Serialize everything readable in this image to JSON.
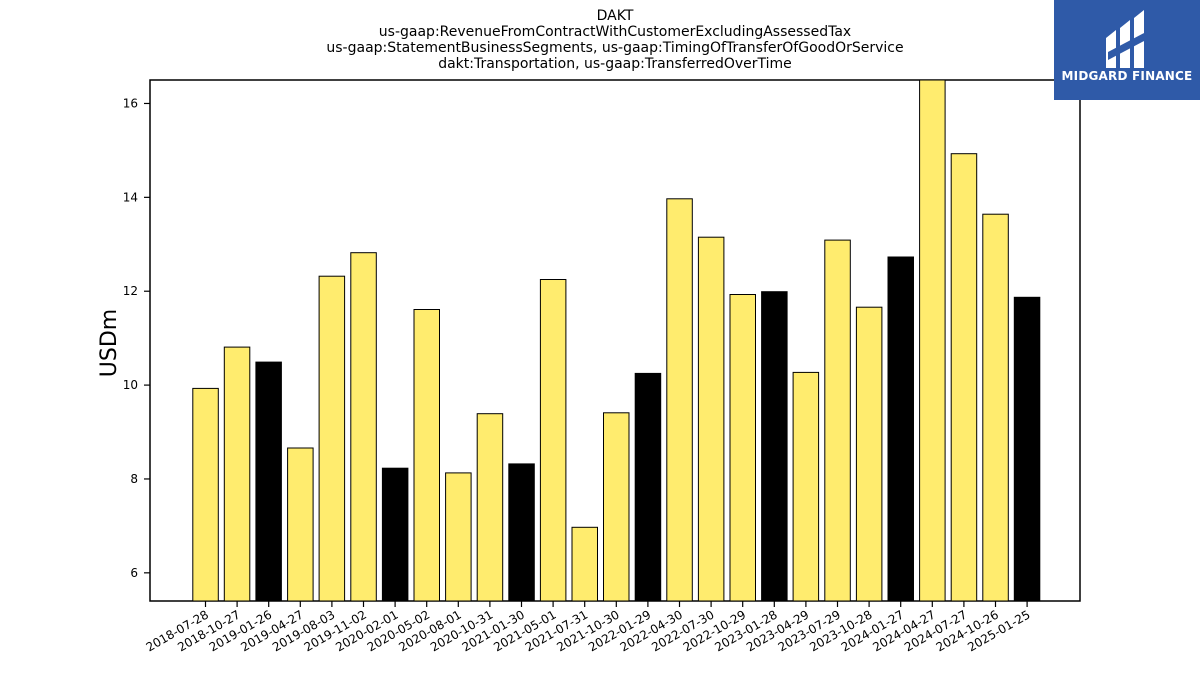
{
  "chart_data": {
    "type": "bar",
    "title_lines": [
      "DAKT",
      "us-gaap:RevenueFromContractWithCustomerExcludingAssessedTax",
      "us-gaap:StatementBusinessSegments, us-gaap:TimingOfTransferOfGoodOrService",
      "dakt:Transportation, us-gaap:TransferredOverTime"
    ],
    "ylabel": "USDm",
    "xlabel": "",
    "ylim": [
      5.4,
      16.5
    ],
    "yticks": [
      6,
      8,
      10,
      12,
      14,
      16
    ],
    "categories": [
      "2018-07-28",
      "2018-10-27",
      "2019-01-26",
      "2019-04-27",
      "2019-08-03",
      "2019-11-02",
      "2020-02-01",
      "2020-05-02",
      "2020-08-01",
      "2020-10-31",
      "2021-01-30",
      "2021-05-01",
      "2021-07-31",
      "2021-10-30",
      "2022-01-29",
      "2022-04-30",
      "2022-07-30",
      "2022-10-29",
      "2023-01-28",
      "2023-04-29",
      "2023-07-29",
      "2023-10-28",
      "2024-01-27",
      "2024-04-27",
      "2024-07-27",
      "2024-10-26",
      "2025-01-25"
    ],
    "values": [
      9.93,
      10.81,
      10.49,
      8.66,
      12.32,
      12.82,
      8.23,
      11.61,
      8.13,
      9.39,
      8.32,
      12.25,
      6.97,
      9.41,
      10.25,
      13.97,
      13.15,
      11.93,
      11.99,
      10.27,
      13.09,
      11.66,
      12.73,
      16.6,
      14.93,
      13.64,
      11.87
    ],
    "bar_colors": [
      "#ffec6e",
      "#ffec6e",
      "#000000",
      "#ffec6e",
      "#ffec6e",
      "#ffec6e",
      "#000000",
      "#ffec6e",
      "#ffec6e",
      "#ffec6e",
      "#000000",
      "#ffec6e",
      "#ffec6e",
      "#ffec6e",
      "#000000",
      "#ffec6e",
      "#ffec6e",
      "#ffec6e",
      "#000000",
      "#ffec6e",
      "#ffec6e",
      "#ffec6e",
      "#000000",
      "#ffec6e",
      "#ffec6e",
      "#ffec6e",
      "#000000"
    ],
    "grid": false,
    "legend": "none"
  },
  "logo": {
    "text": "MIDGARD FINANCE",
    "background": "#2f5aa8"
  }
}
